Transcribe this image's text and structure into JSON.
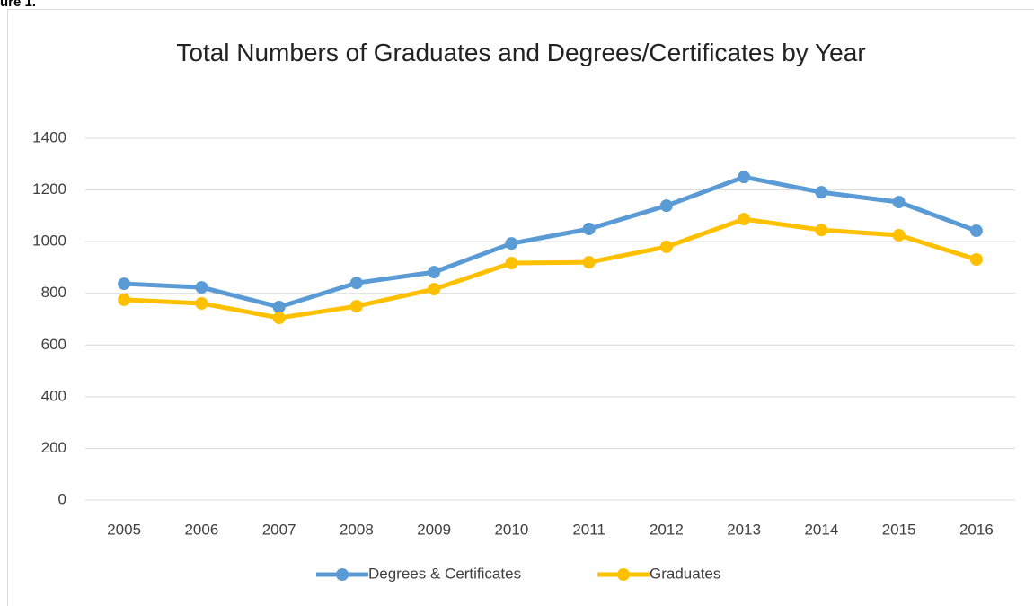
{
  "caption": "ure 1.",
  "chart_data": {
    "type": "line",
    "title": "Total Numbers of Graduates and Degrees/Certificates by Year",
    "categories": [
      "2005",
      "2006",
      "2007",
      "2008",
      "2009",
      "2010",
      "2011",
      "2012",
      "2013",
      "2014",
      "2015",
      "2016"
    ],
    "series": [
      {
        "name": "Degrees & Certificates",
        "color": "#5b9bd5",
        "values": [
          837,
          823,
          747,
          840,
          882,
          993,
          1049,
          1139,
          1250,
          1191,
          1153,
          1042
        ]
      },
      {
        "name": "Graduates",
        "color": "#ffc000",
        "values": [
          775,
          761,
          705,
          750,
          816,
          917,
          920,
          980,
          1087,
          1045,
          1025,
          931
        ]
      }
    ],
    "ylim": [
      0,
      1400
    ],
    "yticks": [
      0,
      200,
      400,
      600,
      800,
      1000,
      1200,
      1400
    ],
    "grid": true,
    "legend": "bottom"
  }
}
